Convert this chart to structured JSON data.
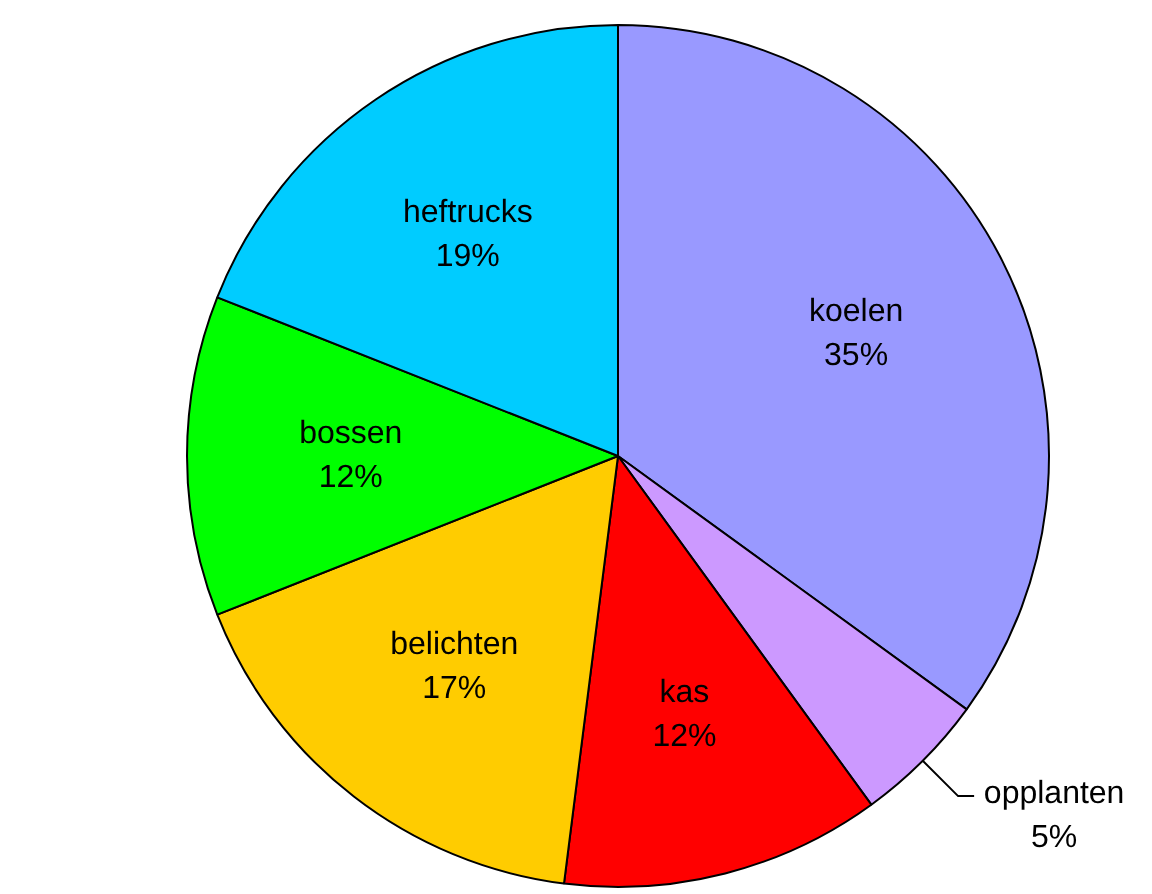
{
  "chart_data": {
    "type": "pie",
    "categories": [
      "koelen",
      "opplanten",
      "kas",
      "belichten",
      "bossen",
      "heftrucks"
    ],
    "values": [
      35,
      5,
      12,
      17,
      12,
      19
    ],
    "value_labels": [
      "35%",
      "5%",
      "12%",
      "17%",
      "12%",
      "19%"
    ],
    "colors": [
      "#9999ff",
      "#cc99ff",
      "#ff0000",
      "#ffcc00",
      "#00ff00",
      "#00ccff"
    ],
    "legend": false
  }
}
